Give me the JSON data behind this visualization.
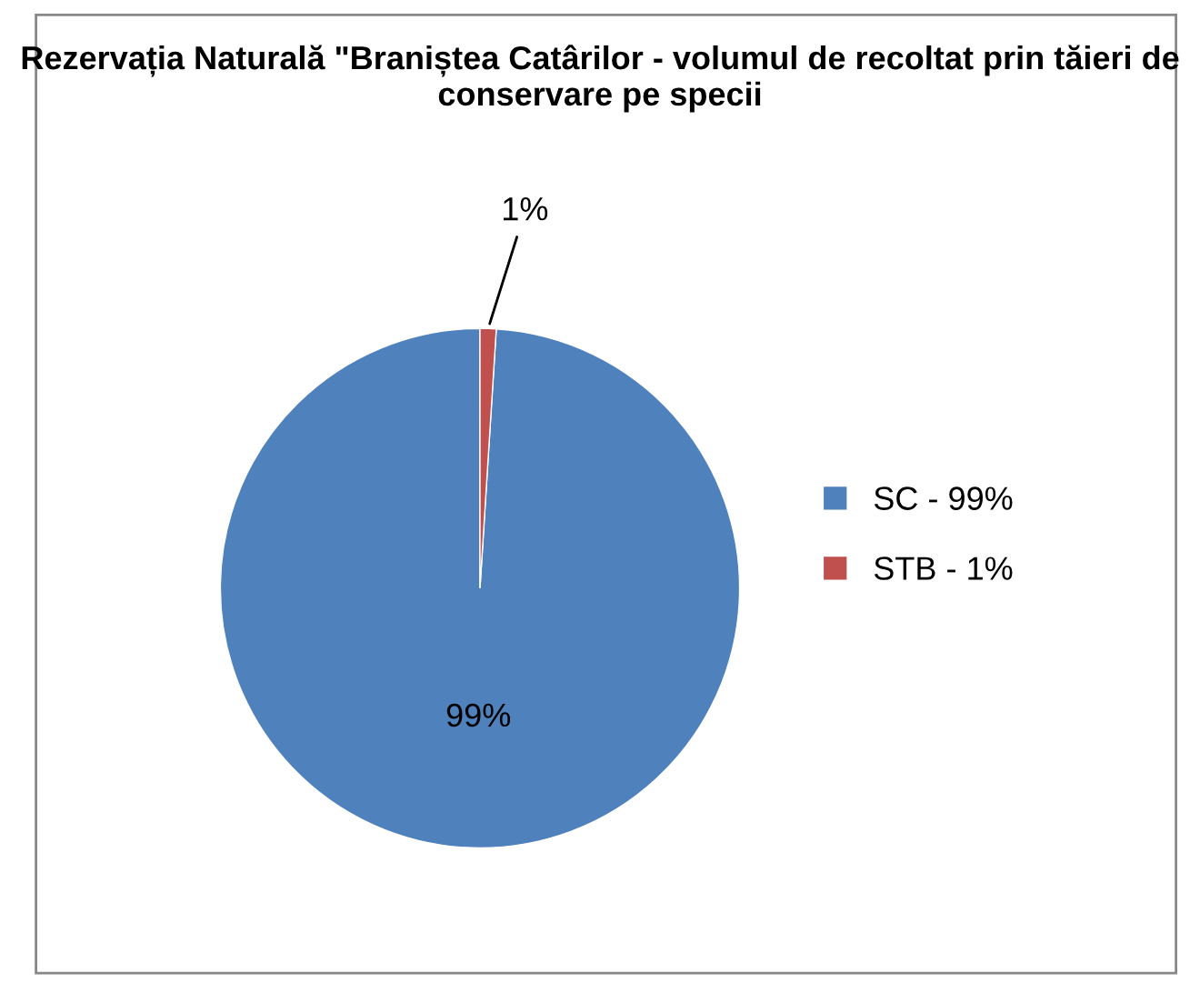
{
  "chart_data": {
    "type": "pie",
    "title": "Rezervația Naturală \"Braniștea Catârilor - volumul de recoltat prin tăieri de conservare pe specii",
    "categories": [
      "SC - 99%",
      "STB - 1%"
    ],
    "values": [
      99,
      1
    ],
    "colors": [
      "#4f81bd",
      "#c0504d"
    ],
    "value_labels": [
      "99%",
      "1%"
    ],
    "legend": "right"
  }
}
